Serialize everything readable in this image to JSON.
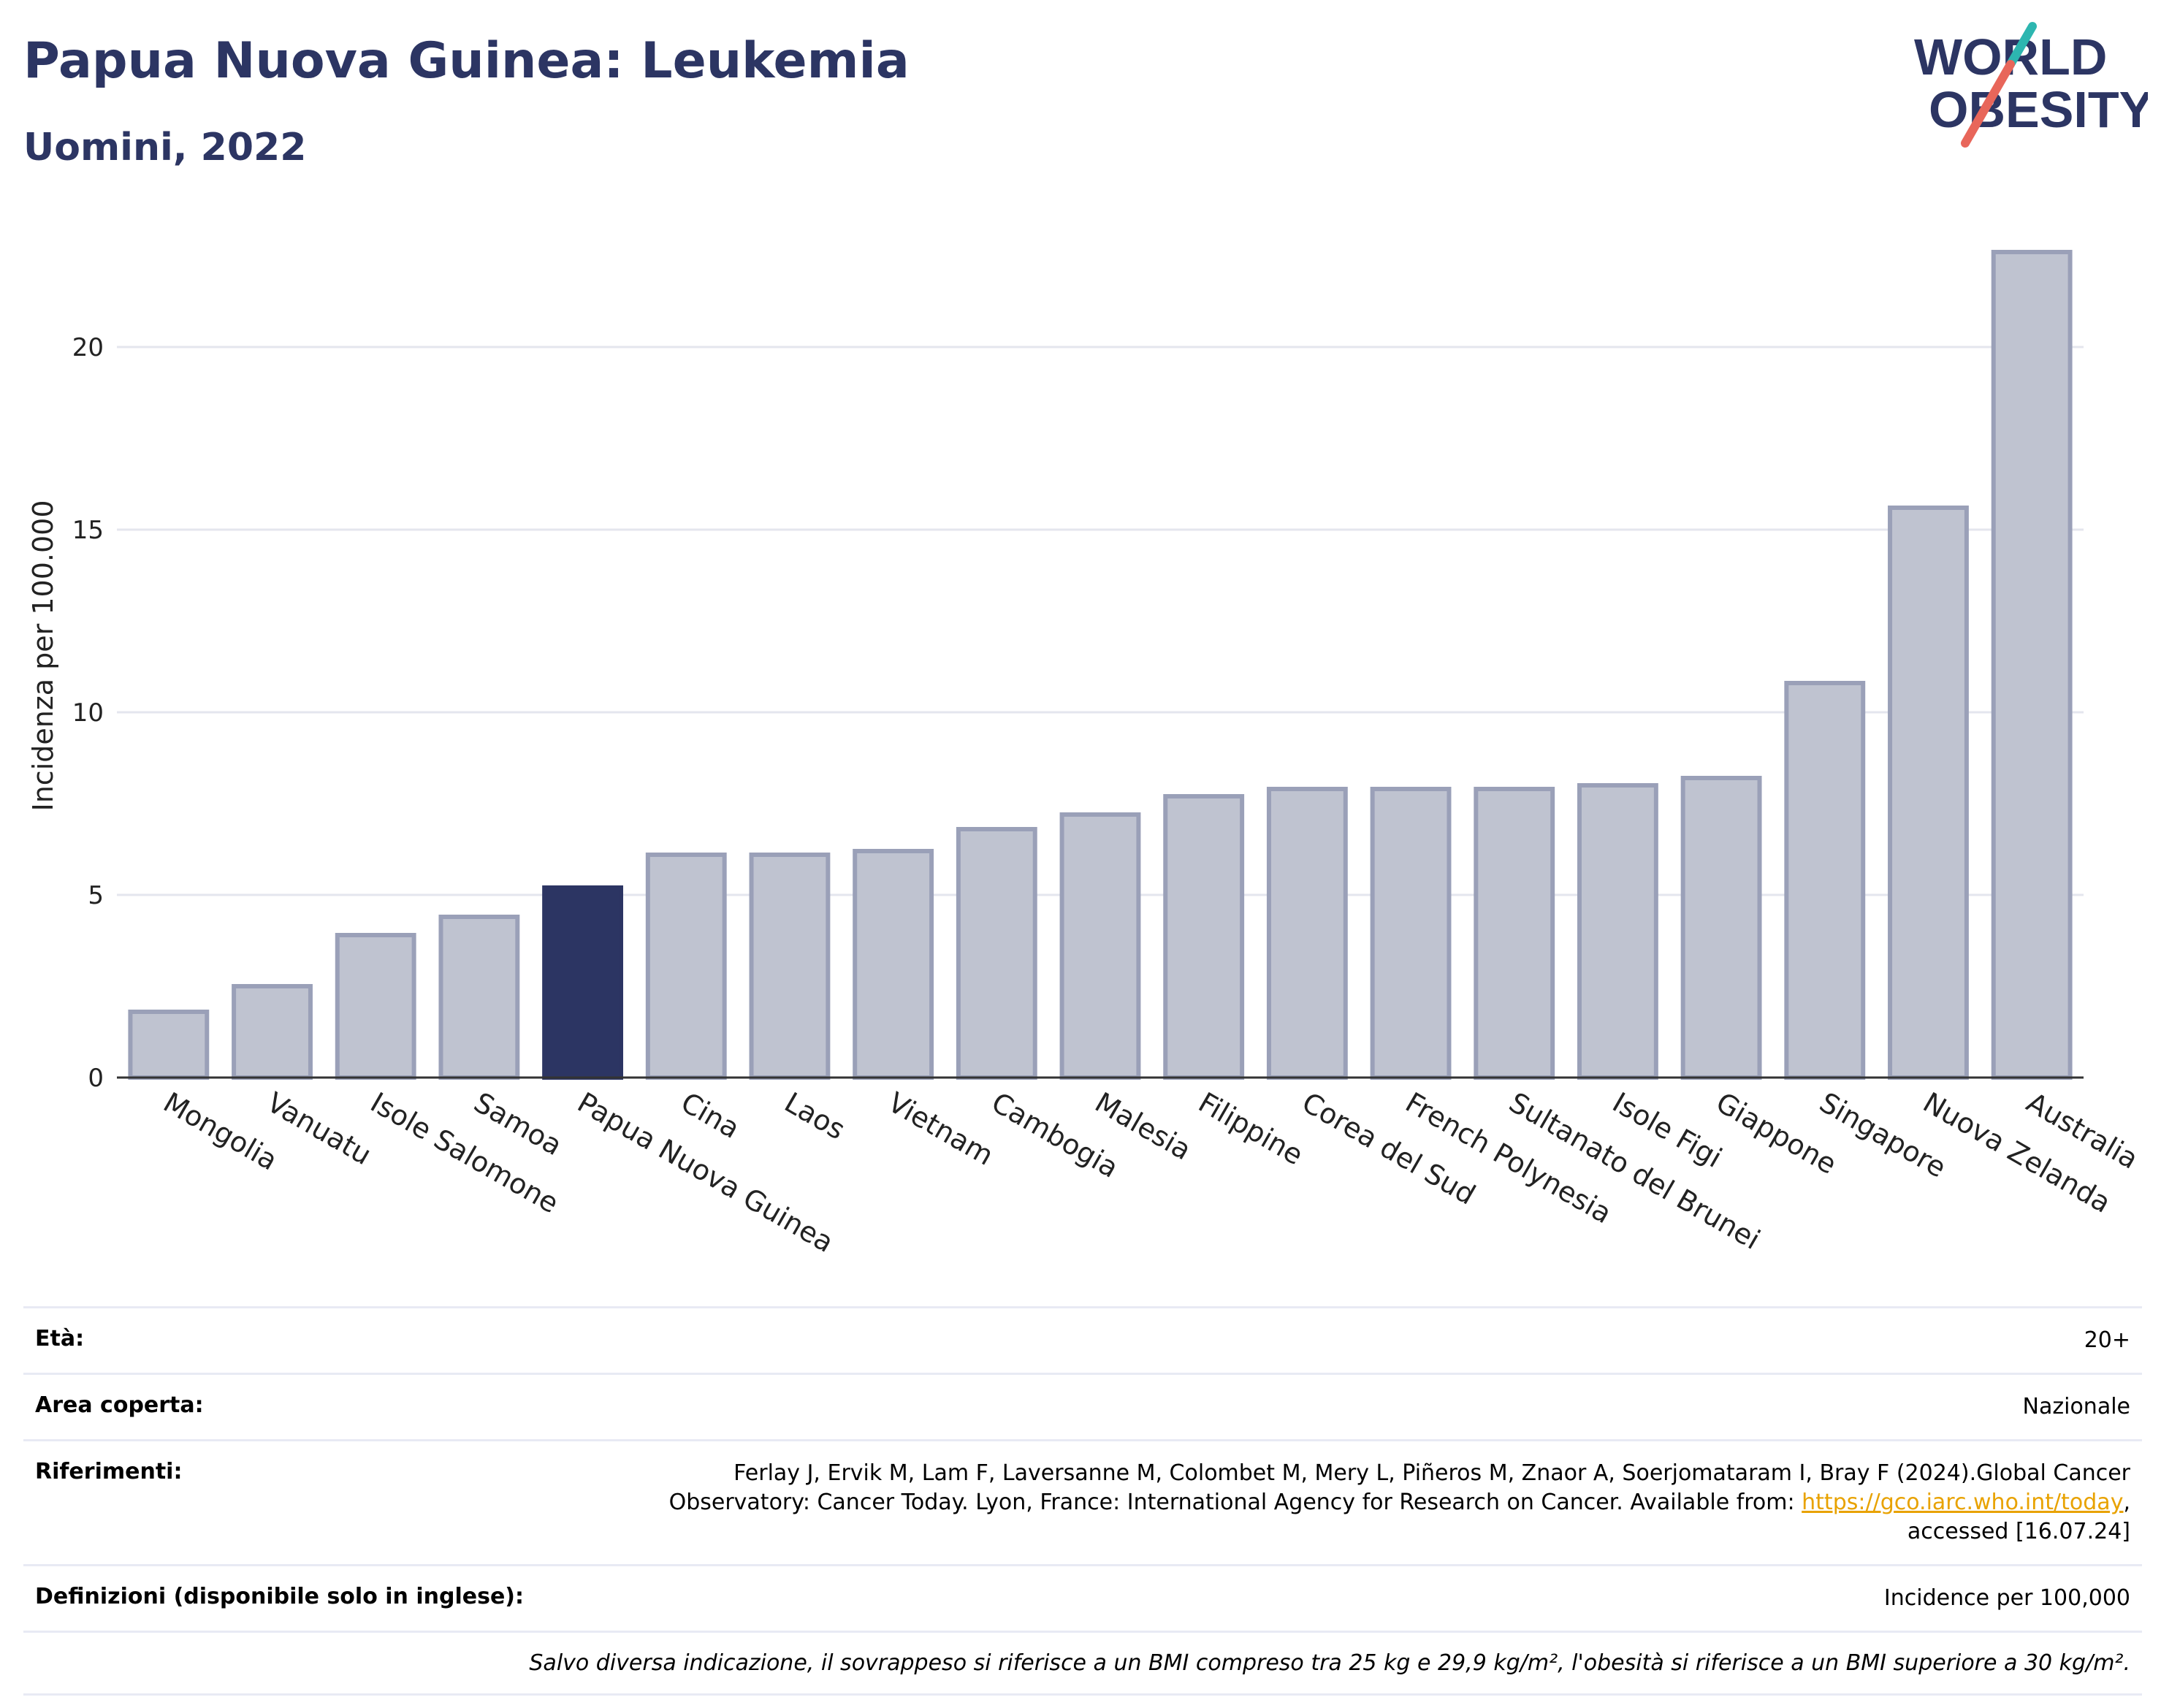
{
  "title": "Papua Nuova Guinea: Leukemia",
  "subtitle": "Uomini, 2022",
  "logo": {
    "line1": "WORLD",
    "line2": "OBESITY"
  },
  "colors": {
    "highlight": "#2c3563",
    "bar": "#bfc3d0",
    "bar_stroke": "#9aa0b8",
    "title": "#2c3563",
    "slash_teal": "#2db6b0",
    "slash_red": "#e8665a"
  },
  "chart_data": {
    "type": "bar",
    "categories": [
      "Mongolia",
      "Vanuatu",
      "Isole Salomone",
      "Samoa",
      "Papua Nuova Guinea",
      "Cina",
      "Laos",
      "Vietnam",
      "Cambogia",
      "Malesia",
      "Filippine",
      "Corea del Sud",
      "French Polynesia",
      "Sultanato del Brunei",
      "Isole Figi",
      "Giappone",
      "Singapore",
      "Nuova Zelanda",
      "Australia"
    ],
    "values": [
      1.8,
      2.5,
      3.9,
      4.4,
      5.2,
      6.1,
      6.1,
      6.2,
      6.8,
      7.2,
      7.7,
      7.9,
      7.9,
      7.9,
      8.0,
      8.2,
      10.8,
      15.6,
      22.6
    ],
    "highlight": "Papua Nuova Guinea",
    "ylabel": "Incidenza per 100.000",
    "xlabel": "",
    "ylim": [
      0,
      23.5
    ],
    "yticks": [
      0,
      5,
      10,
      15,
      20
    ],
    "grid": true
  },
  "info": {
    "age_label": "Età:",
    "age_value": "20+",
    "area_label": "Area coperta:",
    "area_value": "Nazionale",
    "ref_label": "Riferimenti:",
    "ref_text1": "Ferlay J, Ervik M, Lam F, Laversanne M, Colombet M, Mery L, Piñeros M, Znaor A, Soerjomataram I, Bray F (2024).Global Cancer Observatory: Cancer Today. Lyon, France: International Agency for Research on Cancer. Available from: ",
    "ref_link": "https://gco.iarc.who.int/today",
    "ref_text2": ", accessed [16.07.24]",
    "def_label": "Definizioni (disponibile solo in inglese):",
    "def_value": "Incidence per 100,000",
    "note": "Salvo diversa indicazione, il sovrappeso si riferisce a un BMI compreso tra 25 kg e 29,9 kg/m², l'obesità si riferisce a un BMI superiore a 30 kg/m²."
  }
}
